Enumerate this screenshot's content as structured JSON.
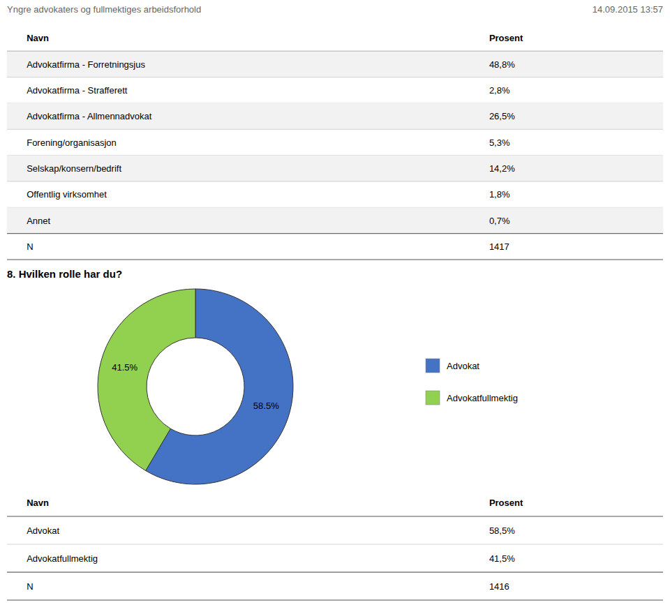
{
  "chart_data": [
    {
      "type": "table",
      "title": "Yngre advokaters og fullmektiges arbeidsforhold",
      "subtitle": "14.09.2015 13:57",
      "columns": [
        "Navn",
        "Prosent"
      ],
      "categories": [
        "Advokatfirma - Forretningsjus",
        "Advokatfirma - Strafferett",
        "Advokatfirma - Allmennadvokat",
        "Forening/organisasjon",
        "Selskap/konsern/bedrift",
        "Offentlig virksomhet",
        "Annet",
        "N"
      ],
      "values": [
        48.8,
        2.8,
        26.5,
        5.3,
        14.2,
        1.8,
        0.7,
        1417
      ],
      "value_labels": [
        "48,8%",
        "2,8%",
        "26,5%",
        "5,3%",
        "14,2%",
        "1,8%",
        "0,7%",
        "1417"
      ]
    },
    {
      "type": "pie",
      "title": "8. Hvilken rolle har du?",
      "categories": [
        "Advokat",
        "Advokatfullmektig"
      ],
      "values": [
        58.5,
        41.5
      ],
      "value_labels": [
        "58.5%",
        "41.5%"
      ],
      "colors": [
        "#4472C4",
        "#92D050"
      ],
      "data_labels": true,
      "legend": "right"
    },
    {
      "type": "table",
      "columns": [
        "Navn",
        "Prosent"
      ],
      "categories": [
        "Advokat",
        "Advokatfullmektig",
        "N"
      ],
      "values": [
        58.5,
        41.5,
        1416
      ],
      "value_labels": [
        "58,5%",
        "41,5%",
        "1416"
      ]
    }
  ]
}
